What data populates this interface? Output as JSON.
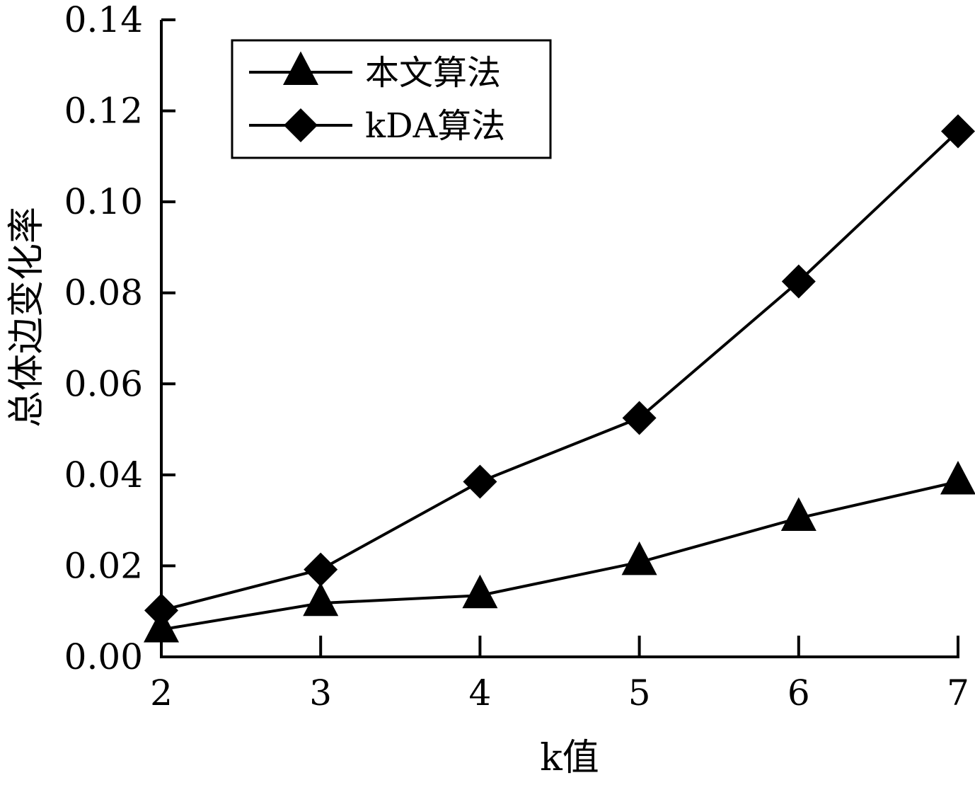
{
  "chart_data": {
    "type": "line",
    "xlabel": "k值",
    "ylabel": "总体边变化率",
    "x": [
      2,
      3,
      4,
      5,
      6,
      7
    ],
    "xlim": [
      2,
      7
    ],
    "ylim": [
      0,
      0.14
    ],
    "x_ticks": [
      "2",
      "3",
      "4",
      "5",
      "6",
      "7"
    ],
    "y_ticks": [
      "0.00",
      "0.02",
      "0.04",
      "0.06",
      "0.08",
      "0.10",
      "0.12",
      "0.14"
    ],
    "grid": false,
    "legend_position": "top-left",
    "series": [
      {
        "name": "本文算法",
        "marker": "triangle",
        "color": "#000000",
        "values": [
          0.006,
          0.0118,
          0.0135,
          0.0208,
          0.0305,
          0.0385
        ]
      },
      {
        "name": "kDA算法",
        "marker": "diamond",
        "color": "#000000",
        "values": [
          0.0102,
          0.0192,
          0.0385,
          0.0525,
          0.0825,
          0.1155
        ]
      }
    ]
  }
}
